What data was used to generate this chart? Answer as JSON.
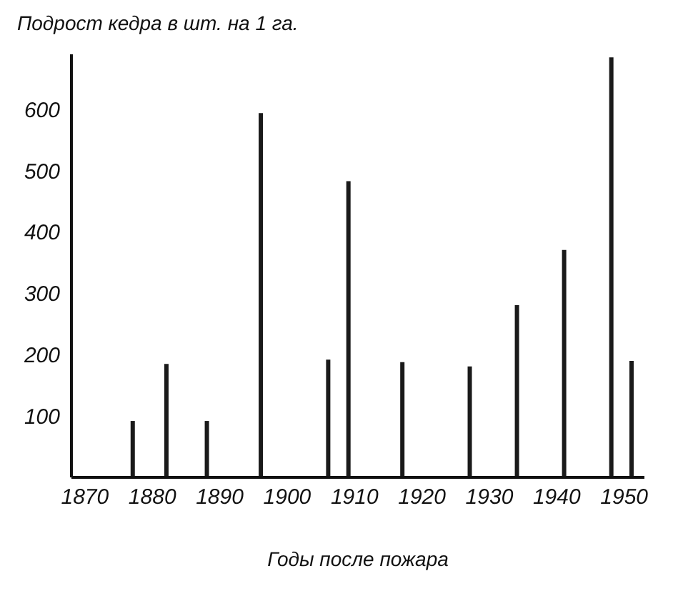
{
  "chart_data": {
    "type": "bar",
    "ylabel": "Подрост кедра в шт. на 1 га.",
    "xlabel": "Годы после пожара",
    "x": [
      1877,
      1882,
      1888,
      1896,
      1906,
      1909,
      1917,
      1927,
      1934,
      1941,
      1948,
      1951
    ],
    "values": [
      92,
      185,
      92,
      594,
      192,
      483,
      188,
      181,
      281,
      371,
      685,
      190
    ],
    "color": "#1a1a1a",
    "xlim": [
      1868,
      1953
    ],
    "xticks": [
      1870,
      1880,
      1890,
      1900,
      1910,
      1920,
      1930,
      1940,
      1950
    ],
    "ylim": [
      0,
      690
    ],
    "yticks": [
      100,
      200,
      300,
      400,
      500,
      600
    ],
    "grid": false,
    "legend": false
  }
}
